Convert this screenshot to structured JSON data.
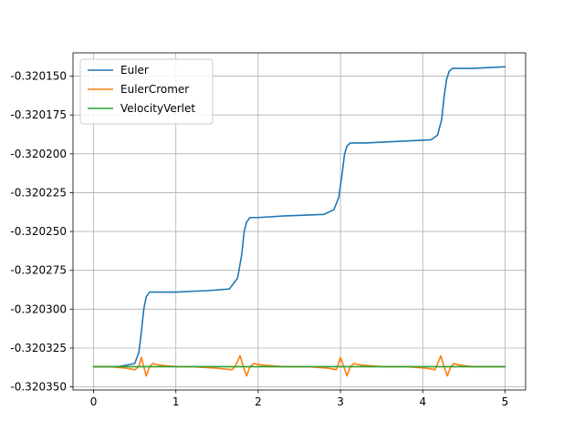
{
  "chart_data": {
    "type": "line",
    "title": "",
    "xlabel": "",
    "ylabel": "",
    "xlim": [
      -0.25,
      5.25
    ],
    "ylim": [
      -0.320352,
      -0.320135
    ],
    "grid": true,
    "legend_position": "upper-left",
    "x_ticks": [
      0,
      1,
      2,
      3,
      4,
      5
    ],
    "x_tick_labels": [
      "0",
      "1",
      "2",
      "3",
      "4",
      "5"
    ],
    "y_ticks": [
      -0.32015,
      -0.320175,
      -0.3202,
      -0.320225,
      -0.32025,
      -0.320275,
      -0.3203,
      -0.320325,
      -0.32035
    ],
    "y_tick_labels": [
      "-0.320150",
      "-0.320175",
      "-0.320200",
      "-0.320225",
      "-0.320250",
      "-0.320275",
      "-0.320300",
      "-0.320325",
      "-0.320350"
    ],
    "series": [
      {
        "name": "Euler",
        "color": "#1f77b4",
        "x": [
          0,
          0.3,
          0.5,
          0.55,
          0.58,
          0.61,
          0.64,
          0.68,
          0.75,
          1.0,
          1.4,
          1.65,
          1.75,
          1.8,
          1.83,
          1.86,
          1.9,
          1.95,
          2.0,
          2.3,
          2.8,
          2.92,
          2.98,
          3.02,
          3.05,
          3.08,
          3.12,
          3.18,
          3.3,
          3.7,
          4.1,
          4.18,
          4.23,
          4.26,
          4.29,
          4.32,
          4.36,
          4.42,
          4.6,
          5.0
        ],
        "y": [
          -0.320337,
          -0.320337,
          -0.320335,
          -0.320328,
          -0.320315,
          -0.3203,
          -0.320292,
          -0.320289,
          -0.320289,
          -0.320289,
          -0.320288,
          -0.320287,
          -0.32028,
          -0.320265,
          -0.32025,
          -0.320244,
          -0.320241,
          -0.320241,
          -0.320241,
          -0.32024,
          -0.320239,
          -0.320236,
          -0.320228,
          -0.320213,
          -0.3202,
          -0.320195,
          -0.320193,
          -0.320193,
          -0.320193,
          -0.320192,
          -0.320191,
          -0.320188,
          -0.320178,
          -0.320163,
          -0.320152,
          -0.320147,
          -0.320145,
          -0.320145,
          -0.320145,
          -0.320144
        ]
      },
      {
        "name": "EulerCromer",
        "color": "#ff7f0e",
        "x": [
          0,
          0.2,
          0.4,
          0.5,
          0.55,
          0.58,
          0.61,
          0.64,
          0.68,
          0.72,
          0.8,
          1.0,
          1.2,
          1.5,
          1.68,
          1.72,
          1.78,
          1.82,
          1.86,
          1.9,
          1.95,
          2.05,
          2.3,
          2.6,
          2.85,
          2.95,
          3.0,
          3.04,
          3.08,
          3.12,
          3.16,
          3.25,
          3.5,
          3.8,
          4.05,
          4.15,
          4.22,
          4.26,
          4.3,
          4.34,
          4.38,
          4.45,
          4.6,
          4.8,
          5.0
        ],
        "y": [
          -0.320337,
          -0.320337,
          -0.320338,
          -0.320339,
          -0.320337,
          -0.320331,
          -0.320337,
          -0.320343,
          -0.320337,
          -0.320335,
          -0.320336,
          -0.320337,
          -0.320337,
          -0.320338,
          -0.320339,
          -0.320337,
          -0.32033,
          -0.320337,
          -0.320343,
          -0.320337,
          -0.320335,
          -0.320336,
          -0.320337,
          -0.320337,
          -0.320338,
          -0.320339,
          -0.320331,
          -0.320337,
          -0.320343,
          -0.320337,
          -0.320335,
          -0.320336,
          -0.320337,
          -0.320337,
          -0.320338,
          -0.320339,
          -0.32033,
          -0.320337,
          -0.320343,
          -0.320337,
          -0.320335,
          -0.320336,
          -0.320337,
          -0.320337,
          -0.320337
        ]
      },
      {
        "name": "VelocityVerlet",
        "color": "#2ca02c",
        "x": [
          0,
          0.5,
          1,
          1.5,
          2,
          2.5,
          3,
          3.5,
          4,
          4.5,
          5
        ],
        "y": [
          -0.320337,
          -0.320337,
          -0.320337,
          -0.320337,
          -0.320337,
          -0.320337,
          -0.320337,
          -0.320337,
          -0.320337,
          -0.320337,
          -0.320337
        ]
      }
    ]
  }
}
